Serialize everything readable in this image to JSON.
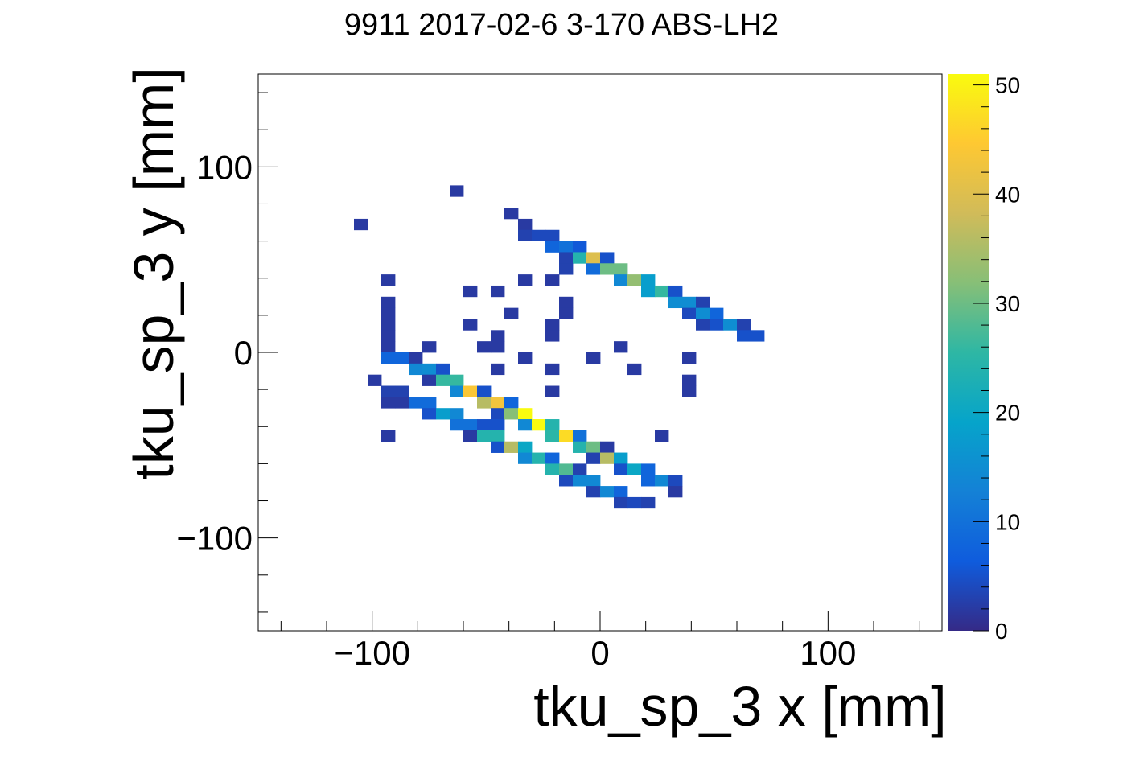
{
  "chart_data": {
    "type": "heatmap",
    "title": "9911 2017-02-6 3-170 ABS-LH2",
    "xlabel": "tku_sp_3 x [mm]",
    "ylabel": "tku_sp_3 y [mm]",
    "xlim": [
      -150,
      150
    ],
    "ylim": [
      -150,
      150
    ],
    "x_ticks": [
      -100,
      0,
      100
    ],
    "x_tick_labels": [
      "−100",
      "0",
      "100"
    ],
    "y_ticks": [
      -100,
      0,
      100
    ],
    "y_tick_labels": [
      "−100",
      "0",
      "100"
    ],
    "bin_width": 6,
    "zlim": [
      0,
      51
    ],
    "z_ticks": [
      0,
      10,
      20,
      30,
      40,
      50
    ],
    "z_tick_labels": [
      "0",
      "10",
      "20",
      "30",
      "40",
      "50"
    ],
    "palette": [
      "#352a87",
      "#0f5cdd",
      "#1481d6",
      "#06a4ca",
      "#2eb7a4",
      "#87bf77",
      "#d1bb59",
      "#fec832",
      "#f9fb0e"
    ],
    "grid": false,
    "cells": [
      [
        -63,
        87,
        2
      ],
      [
        -39,
        75,
        2
      ],
      [
        -105,
        69,
        2
      ],
      [
        -33,
        69,
        2
      ],
      [
        -33,
        63,
        3
      ],
      [
        -27,
        63,
        4
      ],
      [
        -21,
        63,
        4
      ],
      [
        -21,
        57,
        8
      ],
      [
        -15,
        57,
        10
      ],
      [
        -9,
        57,
        6
      ],
      [
        -15,
        51,
        3
      ],
      [
        -9,
        51,
        24
      ],
      [
        -3,
        51,
        40
      ],
      [
        3,
        51,
        5
      ],
      [
        -15,
        45,
        3
      ],
      [
        -3,
        45,
        9
      ],
      [
        3,
        45,
        30
      ],
      [
        9,
        45,
        30
      ],
      [
        -93,
        39,
        2
      ],
      [
        -33,
        39,
        2
      ],
      [
        -21,
        39,
        2
      ],
      [
        9,
        39,
        14
      ],
      [
        15,
        39,
        33
      ],
      [
        21,
        39,
        18
      ],
      [
        -57,
        33,
        2
      ],
      [
        -45,
        33,
        2
      ],
      [
        21,
        33,
        18
      ],
      [
        27,
        33,
        26
      ],
      [
        33,
        33,
        5
      ],
      [
        -93,
        27,
        2
      ],
      [
        -15,
        27,
        2
      ],
      [
        33,
        27,
        15
      ],
      [
        39,
        27,
        15
      ],
      [
        45,
        27,
        3
      ],
      [
        -93,
        21,
        2
      ],
      [
        -39,
        21,
        2
      ],
      [
        -15,
        21,
        2
      ],
      [
        39,
        21,
        4
      ],
      [
        45,
        21,
        15
      ],
      [
        51,
        21,
        8
      ],
      [
        -93,
        15,
        2
      ],
      [
        -57,
        15,
        2
      ],
      [
        -21,
        15,
        2
      ],
      [
        45,
        15,
        3
      ],
      [
        51,
        15,
        5
      ],
      [
        57,
        15,
        15
      ],
      [
        63,
        15,
        3
      ],
      [
        -93,
        9,
        2
      ],
      [
        -45,
        9,
        2
      ],
      [
        -21,
        9,
        2
      ],
      [
        63,
        9,
        5
      ],
      [
        69,
        9,
        5
      ],
      [
        -93,
        3,
        2
      ],
      [
        -75,
        3,
        2
      ],
      [
        -51,
        3,
        2
      ],
      [
        -45,
        3,
        2
      ],
      [
        9,
        3,
        2
      ],
      [
        -93,
        -3,
        8
      ],
      [
        -87,
        -3,
        8
      ],
      [
        -81,
        -3,
        2
      ],
      [
        -33,
        -3,
        2
      ],
      [
        -3,
        -3,
        2
      ],
      [
        39,
        -3,
        2
      ],
      [
        -81,
        -9,
        14
      ],
      [
        -75,
        -9,
        15
      ],
      [
        -69,
        -9,
        5
      ],
      [
        -45,
        -9,
        2
      ],
      [
        -21,
        -9,
        2
      ],
      [
        15,
        -9,
        2
      ],
      [
        -99,
        -15,
        2
      ],
      [
        -75,
        -15,
        2
      ],
      [
        -69,
        -15,
        26
      ],
      [
        -63,
        -15,
        26
      ],
      [
        39,
        -15,
        2
      ],
      [
        -93,
        -21,
        3
      ],
      [
        -87,
        -21,
        3
      ],
      [
        -63,
        -21,
        14
      ],
      [
        -57,
        -21,
        44
      ],
      [
        -51,
        -21,
        5
      ],
      [
        -21,
        -21,
        2
      ],
      [
        39,
        -21,
        2
      ],
      [
        -93,
        -27,
        2
      ],
      [
        -87,
        -27,
        2
      ],
      [
        -81,
        -27,
        9
      ],
      [
        -75,
        -27,
        9
      ],
      [
        -51,
        -27,
        36
      ],
      [
        -45,
        -27,
        43
      ],
      [
        -39,
        -27,
        8
      ],
      [
        -75,
        -33,
        5
      ],
      [
        -69,
        -33,
        18
      ],
      [
        -63,
        -33,
        14
      ],
      [
        -45,
        -33,
        4
      ],
      [
        -39,
        -33,
        32
      ],
      [
        -33,
        -33,
        51
      ],
      [
        -63,
        -39,
        10
      ],
      [
        -57,
        -39,
        10
      ],
      [
        -51,
        -39,
        5
      ],
      [
        -45,
        -39,
        5
      ],
      [
        -33,
        -39,
        14
      ],
      [
        -27,
        -39,
        51
      ],
      [
        -21,
        -39,
        24
      ],
      [
        -93,
        -45,
        2
      ],
      [
        -57,
        -45,
        2
      ],
      [
        -51,
        -45,
        24
      ],
      [
        -45,
        -45,
        24
      ],
      [
        -21,
        -45,
        25
      ],
      [
        -15,
        -45,
        47
      ],
      [
        -9,
        -45,
        10
      ],
      [
        27,
        -45,
        2
      ],
      [
        -45,
        -51,
        5
      ],
      [
        -39,
        -51,
        36
      ],
      [
        -33,
        -51,
        20
      ],
      [
        -9,
        -51,
        24
      ],
      [
        -3,
        -51,
        30
      ],
      [
        3,
        -51,
        2
      ],
      [
        -33,
        -57,
        14
      ],
      [
        -27,
        -57,
        24
      ],
      [
        -21,
        -57,
        8
      ],
      [
        -3,
        -57,
        3
      ],
      [
        3,
        -57,
        36
      ],
      [
        9,
        -57,
        18
      ],
      [
        -21,
        -63,
        24
      ],
      [
        -15,
        -63,
        28
      ],
      [
        -9,
        -63,
        3
      ],
      [
        9,
        -63,
        5
      ],
      [
        15,
        -63,
        20
      ],
      [
        21,
        -63,
        8
      ],
      [
        -15,
        -69,
        4
      ],
      [
        -9,
        -69,
        14
      ],
      [
        -3,
        -69,
        14
      ],
      [
        21,
        -69,
        8
      ],
      [
        27,
        -69,
        14
      ],
      [
        33,
        -69,
        4
      ],
      [
        -3,
        -75,
        3
      ],
      [
        3,
        -75,
        14
      ],
      [
        9,
        -75,
        8
      ],
      [
        33,
        -75,
        2
      ],
      [
        9,
        -81,
        3
      ],
      [
        15,
        -81,
        4
      ],
      [
        21,
        -81,
        3
      ]
    ]
  }
}
